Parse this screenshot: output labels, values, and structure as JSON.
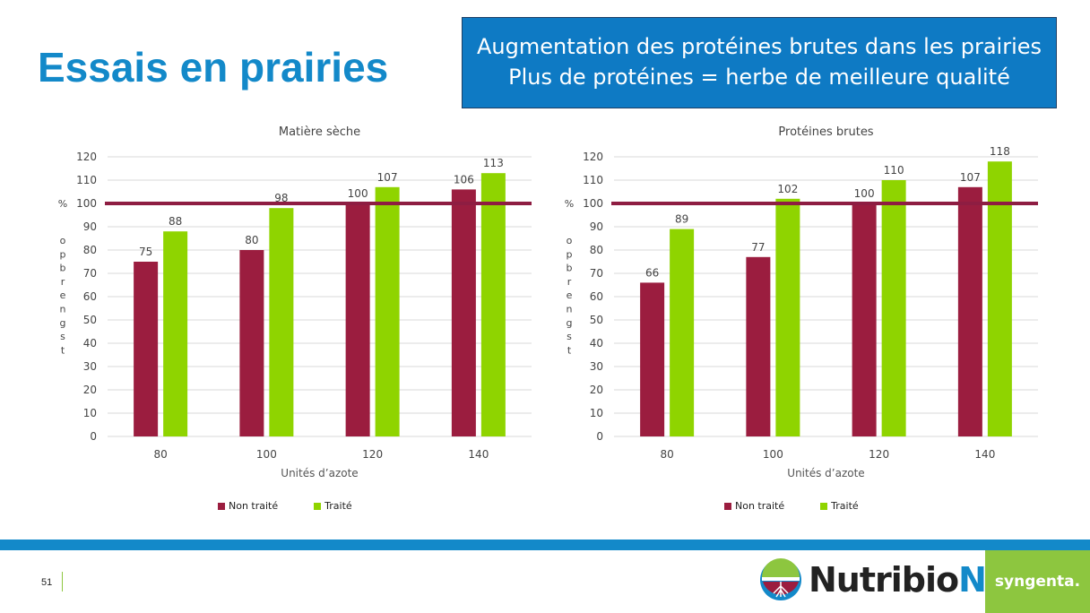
{
  "slide": {
    "title": "Essais en prairies",
    "callout_line1": "Augmentation des protéines brutes dans les prairies",
    "callout_line2": "Plus de protéines = herbe de meilleure qualité",
    "page_number": "51"
  },
  "brand": {
    "product_main": "Nutribio",
    "product_last": "N",
    "registered": "®",
    "company": "syngenta."
  },
  "colors": {
    "title_blue": "#1389c9",
    "callout_blue": "#0e7ac4",
    "non_traite": "#9b1d3f",
    "traite": "#8fd400",
    "reference_line": "#8e1d42",
    "syngenta_green": "#8dc63f"
  },
  "chart_data": [
    {
      "type": "bar",
      "title": "Matière sèche",
      "xlabel": "Unités d’azote",
      "ylabel": "% o p b r e n g s t",
      "categories": [
        "80",
        "100",
        "120",
        "140"
      ],
      "series": [
        {
          "name": "Non traité",
          "values": [
            75,
            80,
            100,
            106
          ]
        },
        {
          "name": "Traité",
          "values": [
            88,
            98,
            107,
            113
          ]
        }
      ],
      "ylim": [
        0,
        120
      ],
      "yticks": [
        0,
        10,
        20,
        30,
        40,
        50,
        60,
        70,
        80,
        90,
        100,
        110,
        120
      ],
      "reference_line": 100,
      "grid": true,
      "legend": "bottom"
    },
    {
      "type": "bar",
      "title": "Protéines brutes",
      "xlabel": "Unités d’azote",
      "ylabel": "% o p b r e n g s t",
      "categories": [
        "80",
        "100",
        "120",
        "140"
      ],
      "series": [
        {
          "name": "Non traité",
          "values": [
            66,
            77,
            100,
            107
          ]
        },
        {
          "name": "Traité",
          "values": [
            89,
            102,
            110,
            118
          ]
        }
      ],
      "ylim": [
        0,
        120
      ],
      "yticks": [
        0,
        10,
        20,
        30,
        40,
        50,
        60,
        70,
        80,
        90,
        100,
        110,
        120
      ],
      "reference_line": 100,
      "grid": true,
      "legend": "bottom"
    }
  ]
}
